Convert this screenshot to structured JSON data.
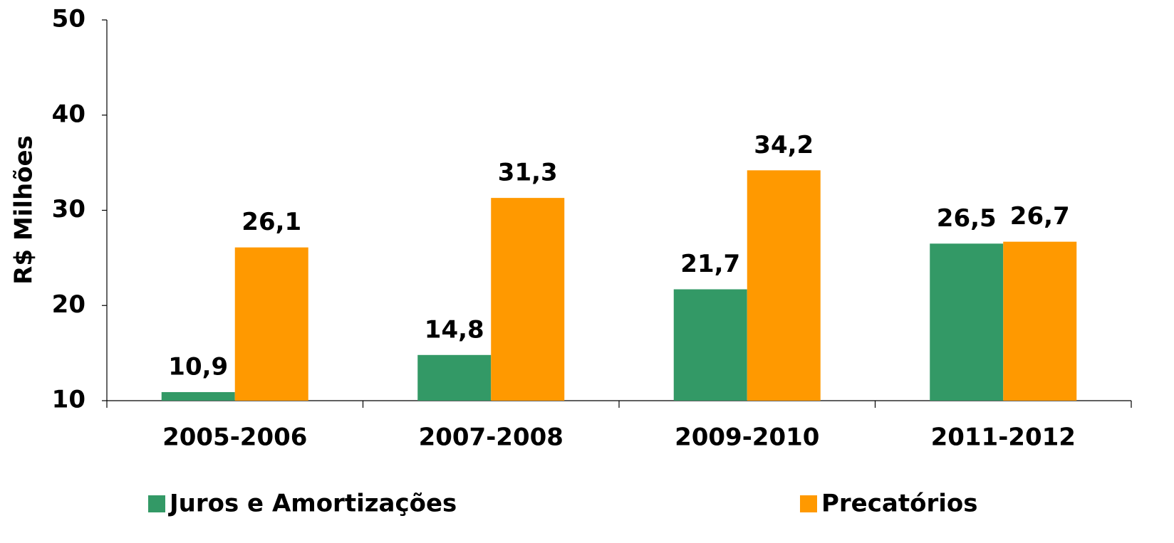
{
  "chart_data": {
    "type": "bar",
    "ylabel": "R$ Milhões",
    "categories": [
      "2005-2006",
      "2007-2008",
      "2009-2010",
      "2011-2012"
    ],
    "series": [
      {
        "name": "Juros e Amortizações",
        "color": "#339966",
        "values": [
          10.9,
          14.8,
          21.7,
          26.5
        ],
        "value_labels": [
          "10,9",
          "14,8",
          "21,7",
          "26,5"
        ]
      },
      {
        "name": "Precatórios",
        "color": "#ff9900",
        "values": [
          26.1,
          31.3,
          34.2,
          26.7
        ],
        "value_labels": [
          "26,1",
          "31,3",
          "34,2",
          "26,7"
        ]
      }
    ],
    "ylim": [
      10,
      50
    ],
    "yticks": [
      10,
      20,
      30,
      40,
      50
    ],
    "grid": false,
    "legend": "bottom"
  }
}
